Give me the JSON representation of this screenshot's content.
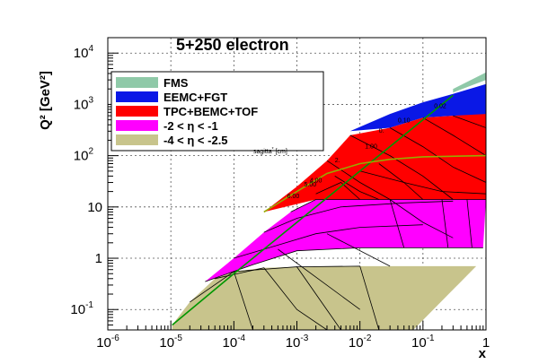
{
  "chart_data": {
    "type": "area",
    "title": "5+250 electron",
    "xlabel": "x",
    "ylabel": "Q² [GeV²]",
    "x_scale": "log",
    "y_scale": "log",
    "xlim": [
      1e-06,
      1
    ],
    "ylim": [
      0.04,
      20000
    ],
    "grid": true,
    "x_ticks": [
      {
        "value": 1e-06,
        "label": "10",
        "exp": "-6"
      },
      {
        "value": 1e-05,
        "label": "10",
        "exp": "-5"
      },
      {
        "value": 0.0001,
        "label": "10",
        "exp": "-4"
      },
      {
        "value": 0.001,
        "label": "10",
        "exp": "-3"
      },
      {
        "value": 0.01,
        "label": "10",
        "exp": "-2"
      },
      {
        "value": 0.1,
        "label": "10",
        "exp": "-1"
      },
      {
        "value": 1,
        "label": "1",
        "exp": ""
      }
    ],
    "y_ticks": [
      {
        "value": 0.1,
        "label": "10",
        "exp": "-1"
      },
      {
        "value": 1,
        "label": "1",
        "exp": ""
      },
      {
        "value": 10,
        "label": "10",
        "exp": ""
      },
      {
        "value": 100,
        "label": "10",
        "exp": "2"
      },
      {
        "value": 1000,
        "label": "10",
        "exp": "3"
      },
      {
        "value": 10000,
        "label": "10",
        "exp": "4"
      }
    ],
    "legend": {
      "placement": "top-left",
      "entries": [
        {
          "label": "FMS",
          "color": "#8fc9a8"
        },
        {
          "label": "EEMC+FGT",
          "color": "#0a18e6"
        },
        {
          "label": "TPC+BEMC+TOF",
          "color": "#ff0000"
        },
        {
          "label": "-2 < η < -1",
          "color": "#ff00ff"
        },
        {
          "label": "-4 < η < -2.5",
          "color": "#c8c48c"
        }
      ]
    },
    "series": [
      {
        "label": "FMS",
        "color": "#8fc9a8",
        "polygon": [
          [
            0.3,
            2000
          ],
          [
            1,
            4200
          ],
          [
            1,
            3000
          ],
          [
            0.3,
            1700
          ]
        ]
      },
      {
        "label": "EEMC+FGT",
        "color": "#0a18e6",
        "polygon": [
          [
            0.007,
            300
          ],
          [
            0.03,
            650
          ],
          [
            0.1,
            1100
          ],
          [
            0.3,
            1600
          ],
          [
            1,
            2500
          ],
          [
            1,
            600
          ],
          [
            0.3,
            600
          ],
          [
            0.1,
            550
          ],
          [
            0.03,
            350
          ],
          [
            0.007,
            300
          ]
        ]
      },
      {
        "label": "TPC+BEMC+TOF",
        "color": "#ff0000",
        "polygon": [
          [
            0.0003,
            8
          ],
          [
            0.001,
            25
          ],
          [
            0.003,
            80
          ],
          [
            0.007,
            250
          ],
          [
            0.03,
            350
          ],
          [
            0.1,
            550
          ],
          [
            0.3,
            600
          ],
          [
            1,
            650
          ],
          [
            1,
            14
          ],
          [
            0.1,
            14
          ],
          [
            0.01,
            14
          ],
          [
            0.002,
            14
          ],
          [
            0.0003,
            8
          ]
        ]
      },
      {
        "label": "-2 < η < -1",
        "color": "#ff00ff",
        "polygon": [
          [
            3.5e-05,
            0.35
          ],
          [
            0.0001,
            1.0
          ],
          [
            0.0003,
            3.2
          ],
          [
            0.0008,
            8
          ],
          [
            0.002,
            14
          ],
          [
            0.01,
            14
          ],
          [
            0.1,
            14
          ],
          [
            1,
            14
          ],
          [
            0.9,
            1.6
          ],
          [
            0.3,
            1.6
          ],
          [
            0.1,
            1.6
          ],
          [
            0.01,
            1.6
          ],
          [
            0.001,
            1.4
          ],
          [
            0.0002,
            0.75
          ],
          [
            3.5e-05,
            0.35
          ]
        ]
      },
      {
        "label": "-4 < η < -2.5",
        "color": "#c8c48c",
        "polygon": [
          [
            1.05e-05,
            0.05
          ],
          [
            2e-05,
            0.14
          ],
          [
            5e-05,
            0.4
          ],
          [
            0.0001,
            0.55
          ],
          [
            0.0003,
            0.65
          ],
          [
            0.001,
            0.68
          ],
          [
            0.01,
            0.7
          ],
          [
            0.1,
            0.7
          ],
          [
            0.7,
            0.7
          ],
          [
            0.07,
            0.04
          ],
          [
            1.05e-05,
            0.04
          ]
        ]
      }
    ],
    "boundaries": [
      {
        "color": "#009600",
        "points": [
          [
            1.05e-05,
            0.05
          ],
          [
            0.0001,
            0.5
          ],
          [
            0.001,
            5
          ],
          [
            0.01,
            50
          ],
          [
            0.1,
            500
          ],
          [
            0.3,
            1500
          ]
        ]
      },
      {
        "color": "#96aa00",
        "points": [
          [
            0.0003,
            8
          ],
          [
            0.001,
            20
          ],
          [
            0.003,
            45
          ],
          [
            0.01,
            70
          ],
          [
            0.03,
            85
          ],
          [
            0.1,
            95
          ],
          [
            1,
            100
          ]
        ]
      }
    ],
    "sagitta_labels": [
      {
        "label": "0.02",
        "x": 0.15,
        "y": 850
      },
      {
        "label": "0.10",
        "x": 0.04,
        "y": 450
      },
      {
        "label": "0.",
        "x": 0.02,
        "y": 280
      },
      {
        "label": "1.00",
        "x": 0.012,
        "y": 140
      },
      {
        "label": "2.",
        "x": 0.004,
        "y": 75
      },
      {
        "label": "4.00",
        "x": 0.0016,
        "y": 30
      },
      {
        "label": "5.00",
        "x": 0.0013,
        "y": 25
      },
      {
        "label": "6.00",
        "x": 0.0007,
        "y": 15
      }
    ],
    "sagitta_title": "sagitta",
    "sagitta_unit": "[cm]"
  }
}
